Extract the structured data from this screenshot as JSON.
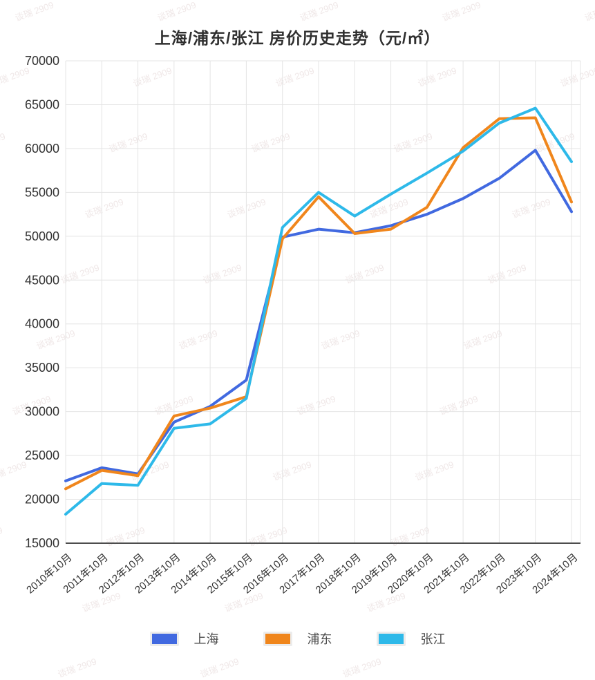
{
  "watermark": {
    "text": "谈瑞 2909"
  },
  "chart_data": {
    "type": "line",
    "title": "上海/浦东/张江 房价历史走势（元/㎡）",
    "categories": [
      "2010年10月",
      "2011年10月",
      "2012年10月",
      "2013年10月",
      "2014年10月",
      "2015年10月",
      "2016年10月",
      "2017年10月",
      "2018年10月",
      "2019年10月",
      "2020年10月",
      "2021年10月",
      "2022年10月",
      "2023年10月",
      "2024年10月"
    ],
    "series": [
      {
        "id": "shanghai",
        "name": "上海",
        "color": "#4169E0",
        "values": [
          22100,
          23600,
          22900,
          28800,
          30600,
          33600,
          49900,
          50800,
          50400,
          51200,
          52500,
          54300,
          56600,
          59800,
          52800
        ]
      },
      {
        "id": "pudong",
        "name": "浦东",
        "color": "#F0861C",
        "values": [
          21200,
          23300,
          22700,
          29500,
          30400,
          31700,
          49700,
          54500,
          50300,
          50800,
          53300,
          60100,
          63400,
          63500,
          53900
        ]
      },
      {
        "id": "zhangjiang",
        "name": "张江",
        "color": "#2EB9E9",
        "values": [
          18300,
          21800,
          21600,
          28100,
          28600,
          31500,
          51000,
          55000,
          52300,
          54800,
          57200,
          59700,
          62900,
          64600,
          58500
        ]
      }
    ],
    "xlabel": "",
    "ylabel": "",
    "ylim": [
      15000,
      70000
    ],
    "ytick_step": 5000,
    "yticks": [
      "70000",
      "65000",
      "60000",
      "55000",
      "50000",
      "45000",
      "40000",
      "35000",
      "30000",
      "25000",
      "20000",
      "15000"
    ],
    "grid": true,
    "legend_position": "bottom",
    "grid_color": "#E4E4E4",
    "axis_line_color": "#4d4d4d",
    "tick_label_color": "#333333"
  }
}
